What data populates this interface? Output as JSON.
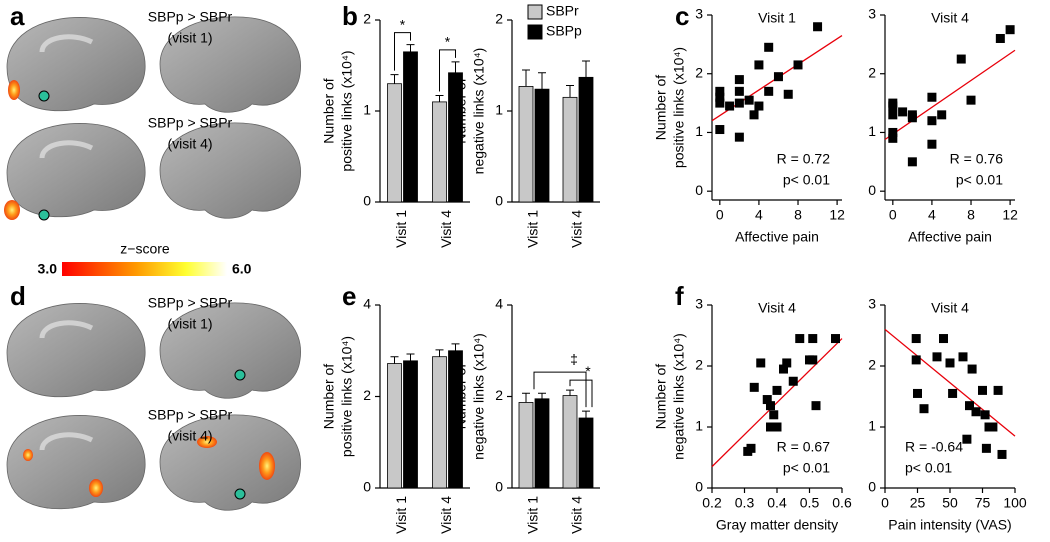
{
  "panel_labels": [
    "a",
    "b",
    "c",
    "d",
    "e",
    "f"
  ],
  "brain_maps": [
    {
      "title": "SBPp > SBPr",
      "subtitle": "(visit 1)"
    },
    {
      "title": "SBPp > SBPr",
      "subtitle": "(visit 4)"
    },
    {
      "title": "SBPp > SBPr",
      "subtitle": "(visit 1)"
    },
    {
      "title": "SBPp > SBPr",
      "subtitle": "(visit 4)"
    }
  ],
  "colorbar": {
    "label": "z−score",
    "min": {
      "value": 3,
      "label": "3.0"
    },
    "max": {
      "value": 6,
      "label": "6.0"
    }
  },
  "chart_data": [
    {
      "type": "bar",
      "ylabel": [
        "Number of",
        "positive links (x10⁴)"
      ],
      "categories": [
        "Visit 1",
        "Visit 4"
      ],
      "series": [
        {
          "name": "SBPr",
          "color": "#c8c8c8",
          "values": [
            1.3,
            1.1
          ],
          "errors": [
            0.1,
            0.07
          ]
        },
        {
          "name": "SBPp",
          "color": "#000000",
          "values": [
            1.65,
            1.42
          ],
          "errors": [
            0.08,
            0.12
          ]
        }
      ],
      "ylim": [
        0,
        2
      ],
      "yticks": [
        0,
        1,
        2
      ],
      "annotations": [
        "*",
        "*"
      ]
    },
    {
      "type": "bar",
      "ylabel": [
        "Number of",
        "negative links (x10⁴)"
      ],
      "categories": [
        "Visit 1",
        "Visit 4"
      ],
      "series": [
        {
          "name": "SBPr",
          "color": "#c8c8c8",
          "values": [
            1.27,
            1.15
          ],
          "errors": [
            0.18,
            0.13
          ]
        },
        {
          "name": "SBPp",
          "color": "#000000",
          "values": [
            1.24,
            1.37
          ],
          "errors": [
            0.18,
            0.18
          ]
        }
      ],
      "ylim": [
        0,
        2
      ],
      "yticks": [
        0,
        1,
        2
      ],
      "legend": "upper right"
    },
    {
      "type": "scatter",
      "title": "Visit 1",
      "ylabel": [
        "Number of",
        "positive links (x10⁴)"
      ],
      "xlabel": "Affective pain",
      "x": [
        0,
        0,
        0,
        0,
        1,
        2,
        2,
        2,
        2,
        3,
        3.5,
        4,
        4,
        5,
        5,
        6,
        7,
        8,
        10
      ],
      "values": [
        1.05,
        1.5,
        1.6,
        1.7,
        1.45,
        0.92,
        1.5,
        1.7,
        1.9,
        1.55,
        1.3,
        1.45,
        2.15,
        1.7,
        2.45,
        1.95,
        1.65,
        2.15,
        2.8
      ],
      "color": "#000000",
      "trend": {
        "x": [
          -0.8,
          12.5
        ],
        "values": [
          1.2,
          2.65
        ],
        "color": "#e8000b"
      },
      "xlim": [
        -0.8,
        12.5
      ],
      "xticks": [
        0,
        4,
        8,
        12
      ],
      "ylim": [
        -0.15,
        3
      ],
      "yticks": [
        0,
        1,
        2,
        3
      ],
      "annotations": [
        "R = 0.72",
        "p< 0.01"
      ]
    },
    {
      "type": "scatter",
      "title": "Visit 4",
      "xlabel": "Affective pain",
      "x": [
        0,
        0,
        0,
        0,
        0,
        1,
        2,
        2,
        2,
        4,
        4,
        4,
        5,
        7,
        8,
        11,
        12
      ],
      "values": [
        0.9,
        1.0,
        1.3,
        1.45,
        1.5,
        1.35,
        0.5,
        1.25,
        1.3,
        0.8,
        1.2,
        1.6,
        1.3,
        2.25,
        1.55,
        2.6,
        2.75
      ],
      "color": "#000000",
      "trend": {
        "x": [
          -0.8,
          12.5
        ],
        "values": [
          0.88,
          2.4
        ],
        "color": "#e8000b"
      },
      "xlim": [
        -0.8,
        12.5
      ],
      "xticks": [
        0,
        4,
        8,
        12
      ],
      "ylim": [
        -0.15,
        3
      ],
      "yticks": [
        0,
        1,
        2,
        3
      ],
      "annotations": [
        "R = 0.76",
        "p< 0.01"
      ]
    },
    {
      "type": "bar",
      "ylabel": [
        "Number of",
        "positive links (x10⁴)"
      ],
      "categories": [
        "Visit 1",
        "Visit 4"
      ],
      "series": [
        {
          "name": "SBPr",
          "color": "#c8c8c8",
          "values": [
            2.72,
            2.87
          ],
          "errors": [
            0.15,
            0.15
          ]
        },
        {
          "name": "SBPp",
          "color": "#000000",
          "values": [
            2.78,
            3.0
          ],
          "errors": [
            0.15,
            0.15
          ]
        }
      ],
      "ylim": [
        0,
        4
      ],
      "yticks": [
        0,
        2,
        4
      ]
    },
    {
      "type": "bar",
      "ylabel": [
        "Number of",
        "negative links (x10⁴)"
      ],
      "categories": [
        "Visit 1",
        "Visit 4"
      ],
      "series": [
        {
          "name": "SBPr",
          "color": "#c8c8c8",
          "values": [
            1.87,
            2.02
          ],
          "errors": [
            0.2,
            0.12
          ]
        },
        {
          "name": "SBPp",
          "color": "#000000",
          "values": [
            1.95,
            1.53
          ],
          "errors": [
            0.12,
            0.15
          ]
        }
      ],
      "ylim": [
        0,
        4
      ],
      "yticks": [
        0,
        2,
        4
      ],
      "annotations": [
        "‡",
        "*"
      ]
    },
    {
      "type": "scatter",
      "title": "Visit 4",
      "ylabel": [
        "Number of",
        "negative links (x10⁴)"
      ],
      "xlabel": "Gray matter density",
      "x": [
        0.31,
        0.32,
        0.33,
        0.35,
        0.37,
        0.38,
        0.38,
        0.39,
        0.39,
        0.4,
        0.4,
        0.42,
        0.43,
        0.45,
        0.47,
        0.5,
        0.51,
        0.51,
        0.52,
        0.58
      ],
      "values": [
        0.6,
        0.65,
        1.65,
        2.05,
        1.45,
        1.35,
        1.0,
        1.2,
        1.0,
        1.0,
        1.6,
        1.95,
        2.05,
        1.75,
        2.45,
        2.1,
        2.1,
        2.45,
        1.35,
        2.45
      ],
      "color": "#000000",
      "trend": {
        "x": [
          0.2,
          0.6
        ],
        "values": [
          0.35,
          2.45
        ],
        "color": "#e8000b"
      },
      "xlim": [
        0.2,
        0.6
      ],
      "xticks": [
        0.2,
        0.3,
        0.4,
        0.5,
        0.6
      ],
      "ylim": [
        0,
        3
      ],
      "yticks": [
        0,
        1,
        2,
        3
      ],
      "annotations": [
        "R = 0.67",
        "p< 0.01"
      ]
    },
    {
      "type": "scatter",
      "title": "Visit 4",
      "xlabel": "Pain intensity (VAS)",
      "x": [
        24,
        24,
        25,
        30,
        40,
        45,
        50,
        52,
        60,
        63,
        65,
        67,
        70,
        75,
        77,
        78,
        80,
        83,
        87,
        90
      ],
      "values": [
        2.45,
        2.1,
        1.55,
        1.3,
        2.15,
        2.45,
        2.05,
        1.55,
        2.15,
        0.8,
        1.35,
        1.95,
        1.25,
        1.6,
        1.2,
        0.65,
        1.0,
        1.0,
        1.6,
        0.55
      ],
      "color": "#000000",
      "trend": {
        "x": [
          0,
          100
        ],
        "values": [
          2.6,
          0.85
        ],
        "color": "#e8000b"
      },
      "xlim": [
        0,
        100
      ],
      "xticks": [
        0,
        25,
        50,
        75,
        100
      ],
      "ylim": [
        0,
        3
      ],
      "yticks": [
        0,
        1,
        2,
        3
      ],
      "annotations": [
        "R = -0.64",
        "p< 0.01"
      ]
    }
  ]
}
